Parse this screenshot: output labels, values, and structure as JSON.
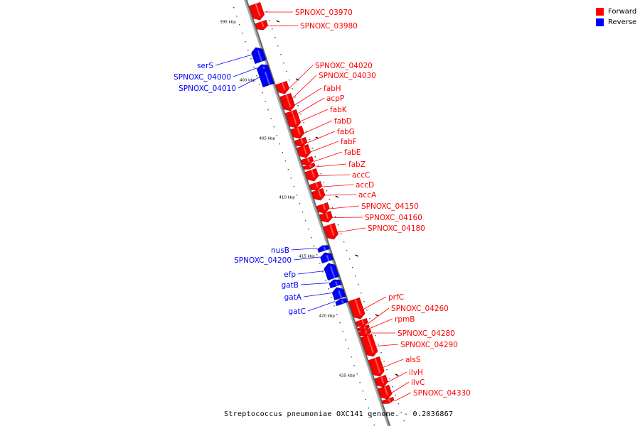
{
  "legend": [
    {
      "label": "Forward",
      "color": "#ff0000"
    },
    {
      "label": "Reverse",
      "color": "#0000ff"
    }
  ],
  "colors": {
    "forward": "#ff0000",
    "reverse": "#0000ff",
    "backbone": "#999999"
  },
  "caption": "Streptococcus pneumoniae OXC141 genome. - 0.2036867",
  "ticks": [
    {
      "label": "395 kbp",
      "kbp": 395
    },
    {
      "label": "400 kbp",
      "kbp": 400
    },
    {
      "label": "405 kbp",
      "kbp": 405
    },
    {
      "label": "410 kbp",
      "kbp": 410
    },
    {
      "label": "415 kbp",
      "kbp": 415
    },
    {
      "label": "420 kbp",
      "kbp": 420
    },
    {
      "label": "425 kbp",
      "kbp": 425
    }
  ],
  "genes": [
    {
      "name": "SPNOXC_03970",
      "strand": "forward"
    },
    {
      "name": "SPNOXC_03980",
      "strand": "forward"
    },
    {
      "name": "serS",
      "strand": "reverse"
    },
    {
      "name": "SPNOXC_04000",
      "strand": "reverse"
    },
    {
      "name": "SPNOXC_04010",
      "strand": "reverse"
    },
    {
      "name": "SPNOXC_04020",
      "strand": "forward"
    },
    {
      "name": "SPNOXC_04030",
      "strand": "forward"
    },
    {
      "name": "fabH",
      "strand": "forward"
    },
    {
      "name": "acpP",
      "strand": "forward"
    },
    {
      "name": "fabK",
      "strand": "forward"
    },
    {
      "name": "fabD",
      "strand": "forward"
    },
    {
      "name": "fabG",
      "strand": "forward"
    },
    {
      "name": "fabF",
      "strand": "forward"
    },
    {
      "name": "fabE",
      "strand": "forward"
    },
    {
      "name": "fabZ",
      "strand": "forward"
    },
    {
      "name": "accC",
      "strand": "forward"
    },
    {
      "name": "accD",
      "strand": "forward"
    },
    {
      "name": "accA",
      "strand": "forward"
    },
    {
      "name": "SPNOXC_04150",
      "strand": "forward"
    },
    {
      "name": "SPNOXC_04160",
      "strand": "forward"
    },
    {
      "name": "SPNOXC_04180",
      "strand": "forward"
    },
    {
      "name": "nusB",
      "strand": "reverse"
    },
    {
      "name": "SPNOXC_04200",
      "strand": "reverse"
    },
    {
      "name": "efp",
      "strand": "reverse"
    },
    {
      "name": "gatB",
      "strand": "reverse"
    },
    {
      "name": "gatA",
      "strand": "reverse"
    },
    {
      "name": "gatC",
      "strand": "reverse"
    },
    {
      "name": "prfC",
      "strand": "forward"
    },
    {
      "name": "SPNOXC_04260",
      "strand": "forward"
    },
    {
      "name": "rpmB",
      "strand": "forward"
    },
    {
      "name": "SPNOXC_04280",
      "strand": "forward"
    },
    {
      "name": "SPNOXC_04290",
      "strand": "forward"
    },
    {
      "name": "alsS",
      "strand": "forward"
    },
    {
      "name": "ilvH",
      "strand": "forward"
    },
    {
      "name": "ilvC",
      "strand": "forward"
    },
    {
      "name": "SPNOXC_04330",
      "strand": "forward"
    }
  ]
}
